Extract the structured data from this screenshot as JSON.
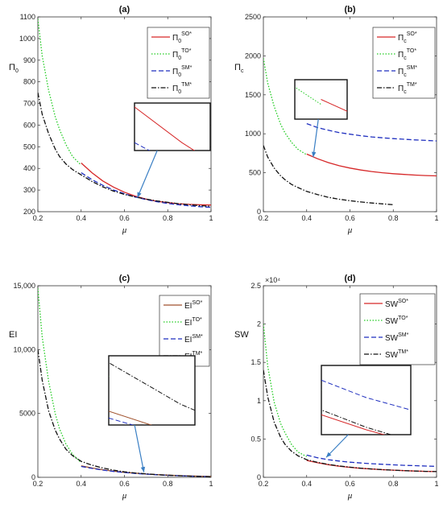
{
  "series_styles": [
    {
      "color": "#d62728",
      "dash": "",
      "width": 1.3
    },
    {
      "color": "#22cc22",
      "dash": "1.5,2",
      "width": 1.3
    },
    {
      "color": "#1f2fbf",
      "dash": "6,3",
      "width": 1.3
    },
    {
      "color": "#111111",
      "dash": "6,2,1.5,2",
      "width": 1.3
    }
  ],
  "series_styles_c": [
    {
      "color": "#a0522d",
      "dash": "",
      "width": 1.3
    },
    {
      "color": "#22cc22",
      "dash": "1.5,2",
      "width": 1.3
    },
    {
      "color": "#1f2fbf",
      "dash": "6,3",
      "width": 1.3
    },
    {
      "color": "#111111",
      "dash": "6,2,1.5,2",
      "width": 1.3
    }
  ],
  "chart_data": [
    {
      "id": "a",
      "type": "line",
      "title": "(a)",
      "xlabel": "μ",
      "ylabel": "Π0",
      "ylabel_base": "Π",
      "ylabel_sub": "0",
      "xlim": [
        0.2,
        1
      ],
      "ylim": [
        200,
        1100
      ],
      "xticks": [
        "0.2",
        "0.4",
        "0.6",
        "0.8",
        "1"
      ],
      "yticks": [
        "200",
        "300",
        "400",
        "500",
        "600",
        "700",
        "800",
        "900",
        "1000",
        "1100"
      ],
      "exponent_label": "",
      "legend_position": "top-right",
      "inset_region": {
        "x": [
          0.4,
          0.48
        ],
        "y": [
          370,
          430
        ]
      },
      "inset_arrow": {
        "from": [
          0.835,
          0.79
        ],
        "to": [
          0.79,
          0.85
        ],
        "target": [
          0.66,
          265
        ]
      },
      "series": [
        {
          "name": "Π0SO*",
          "legend_base": "Π",
          "legend_sub": "0",
          "legend_sup": "SO*",
          "x": [
            0.4,
            0.45,
            0.5,
            0.55,
            0.6,
            0.65,
            0.7,
            0.75,
            0.8,
            0.85,
            0.9,
            0.95,
            1.0
          ],
          "y": [
            425,
            380,
            342,
            313,
            290,
            272,
            258,
            248,
            242,
            237,
            234,
            232,
            231
          ]
        },
        {
          "name": "Π0TO*",
          "legend_base": "Π",
          "legend_sub": "0",
          "legend_sup": "TO*",
          "x": [
            0.2,
            0.22,
            0.25,
            0.28,
            0.3,
            0.33,
            0.36,
            0.4
          ],
          "y": [
            1090,
            920,
            760,
            640,
            580,
            510,
            455,
            415
          ]
        },
        {
          "name": "Π0SM*",
          "legend_base": "Π",
          "legend_sub": "0",
          "legend_sup": "SM*",
          "x": [
            0.4,
            0.45,
            0.5,
            0.55,
            0.6,
            0.65,
            0.7,
            0.75,
            0.8,
            0.85,
            0.9,
            0.95,
            1.0
          ],
          "y": [
            380,
            348,
            322,
            300,
            283,
            268,
            256,
            246,
            238,
            232,
            227,
            223,
            220
          ]
        },
        {
          "name": "Π0TM*",
          "legend_base": "Π",
          "legend_sub": "0",
          "legend_sup": "TM*",
          "x": [
            0.2,
            0.22,
            0.25,
            0.28,
            0.3,
            0.33,
            0.36,
            0.4,
            0.45,
            0.5,
            0.55,
            0.6,
            0.65,
            0.7,
            0.75,
            0.8,
            0.85,
            0.9,
            0.95,
            1.0
          ],
          "y": [
            750,
            650,
            560,
            490,
            455,
            420,
            395,
            370,
            340,
            315,
            295,
            280,
            268,
            258,
            250,
            243,
            237,
            232,
            228,
            225
          ]
        }
      ]
    },
    {
      "id": "b",
      "type": "line",
      "title": "(b)",
      "xlabel": "μ",
      "ylabel": "Πc",
      "ylabel_base": "Π",
      "ylabel_sub": "c",
      "xlim": [
        0.2,
        1
      ],
      "ylim": [
        0,
        2500
      ],
      "xticks": [
        "0.2",
        "0.4",
        "0.6",
        "0.8",
        "1"
      ],
      "yticks": [
        "0",
        "500",
        "1000",
        "1500",
        "2000",
        "2500"
      ],
      "exponent_label": "",
      "legend_position": "top-right",
      "inset_region": {
        "x": [
          0.38,
          0.42
        ],
        "y": [
          700,
          780
        ]
      },
      "inset_arrow": {
        "from": [
          0.44,
          0.66
        ],
        "to": [
          0.42,
          0.72
        ],
        "target": [
          0.43,
          700
        ]
      },
      "series": [
        {
          "name": "ΠcSO*",
          "legend_base": "Π",
          "legend_sub": "c",
          "legend_sup": "SO*",
          "x": [
            0.4,
            0.45,
            0.5,
            0.55,
            0.6,
            0.65,
            0.7,
            0.75,
            0.8,
            0.85,
            0.9,
            0.95,
            1.0
          ],
          "y": [
            740,
            680,
            630,
            590,
            560,
            535,
            515,
            500,
            488,
            478,
            470,
            464,
            460
          ]
        },
        {
          "name": "ΠcTO*",
          "legend_base": "Π",
          "legend_sub": "c",
          "legend_sup": "TO*",
          "x": [
            0.2,
            0.22,
            0.25,
            0.28,
            0.3,
            0.33,
            0.36,
            0.4
          ],
          "y": [
            1970,
            1650,
            1350,
            1120,
            1010,
            890,
            800,
            730
          ]
        },
        {
          "name": "ΠcSM*",
          "legend_base": "Π",
          "legend_sub": "c",
          "legend_sup": "SM*",
          "x": [
            0.4,
            0.45,
            0.5,
            0.55,
            0.6,
            0.65,
            0.7,
            0.75,
            0.8,
            0.85,
            0.9,
            0.95,
            1.0
          ],
          "y": [
            1130,
            1080,
            1045,
            1015,
            995,
            975,
            960,
            948,
            938,
            930,
            922,
            915,
            908
          ]
        },
        {
          "name": "ΠcTM*",
          "legend_base": "Π",
          "legend_sub": "c",
          "legend_sup": "TM*",
          "x": [
            0.2,
            0.22,
            0.25,
            0.28,
            0.3,
            0.33,
            0.36,
            0.4,
            0.45,
            0.5,
            0.55,
            0.6,
            0.65,
            0.7,
            0.75,
            0.8
          ],
          "y": [
            850,
            700,
            560,
            460,
            410,
            350,
            310,
            260,
            220,
            185,
            160,
            140,
            125,
            112,
            100,
            90
          ]
        }
      ]
    },
    {
      "id": "c",
      "type": "line",
      "title": "(c)",
      "xlabel": "μ",
      "ylabel": "EI",
      "ylabel_base": "EI",
      "ylabel_sub": "",
      "xlim": [
        0.2,
        1
      ],
      "ylim": [
        0,
        15000
      ],
      "xticks": [
        "0.2",
        "0.4",
        "0.6",
        "0.8",
        "1"
      ],
      "yticks": [
        "0",
        "5000",
        "10,000",
        "15,000"
      ],
      "exponent_label": "",
      "legend_position": "top-right",
      "inset_region": {
        "x": [
          0.4,
          0.46
        ],
        "y": [
          800,
          1300
        ]
      },
      "inset_arrow": {
        "from": [
          0.69,
          0.48
        ],
        "to": [
          0.69,
          0.1
        ],
        "target": [
          0.69,
          400
        ]
      },
      "series": [
        {
          "name": "EISO*",
          "legend_base": "EI",
          "legend_sub": "",
          "legend_sup": "SO*",
          "x": [
            0.4,
            0.45,
            0.5,
            0.55,
            0.6,
            0.65,
            0.7,
            0.75,
            0.8,
            0.85,
            0.9,
            0.95,
            1.0
          ],
          "y": [
            900,
            730,
            590,
            480,
            390,
            320,
            260,
            210,
            170,
            135,
            105,
            80,
            60
          ]
        },
        {
          "name": "EITO*",
          "legend_base": "EI",
          "legend_sub": "",
          "legend_sup": "TO*",
          "x": [
            0.2,
            0.22,
            0.25,
            0.28,
            0.3,
            0.33,
            0.36,
            0.4
          ],
          "y": [
            14800,
            11000,
            7500,
            5000,
            3800,
            2600,
            1800,
            1150
          ]
        },
        {
          "name": "EISM*",
          "legend_base": "EI",
          "legend_sub": "",
          "legend_sup": "SM*",
          "x": [
            0.4,
            0.45,
            0.5,
            0.55,
            0.6,
            0.65,
            0.7,
            0.75,
            0.8,
            0.85,
            0.9,
            0.95,
            1.0
          ],
          "y": [
            850,
            700,
            570,
            460,
            375,
            305,
            250,
            200,
            160,
            125,
            95,
            70,
            50
          ]
        },
        {
          "name": "EITM*",
          "legend_base": "EI",
          "legend_sub": "",
          "legend_sup": "TM*",
          "x": [
            0.2,
            0.22,
            0.25,
            0.28,
            0.3,
            0.33,
            0.36,
            0.4,
            0.45,
            0.5,
            0.55,
            0.6,
            0.65,
            0.7,
            0.75,
            0.8,
            0.85,
            0.9,
            0.95,
            1.0
          ],
          "y": [
            10000,
            7600,
            5200,
            3700,
            3000,
            2200,
            1700,
            1250,
            950,
            730,
            560,
            430,
            340,
            270,
            210,
            165,
            125,
            95,
            70,
            50
          ]
        }
      ]
    },
    {
      "id": "d",
      "type": "line",
      "title": "(d)",
      "xlabel": "μ",
      "ylabel": "SW",
      "ylabel_base": "SW",
      "ylabel_sub": "",
      "xlim": [
        0.2,
        1
      ],
      "ylim": [
        0,
        25000
      ],
      "xticks": [
        "0.2",
        "0.4",
        "0.6",
        "0.8",
        "1"
      ],
      "yticks": [
        "0",
        "0.5",
        "1",
        "1.5",
        "2",
        "2.5"
      ],
      "exponent_label": "×10⁴",
      "legend_position": "top-right",
      "inset_region": {
        "x": [
          0.4,
          0.5
        ],
        "y": [
          1800,
          3200
        ]
      },
      "inset_arrow": {
        "from": [
          0.62,
          0.36
        ],
        "to": [
          0.53,
          0.15
        ],
        "target": [
          0.49,
          2600
        ]
      },
      "series": [
        {
          "name": "SWSO*",
          "legend_base": "SW",
          "legend_sub": "",
          "legend_sup": "SO*",
          "x": [
            0.4,
            0.45,
            0.5,
            0.55,
            0.6,
            0.65,
            0.7,
            0.75,
            0.8,
            0.85,
            0.9,
            0.95,
            1.0
          ],
          "y": [
            2200,
            1900,
            1650,
            1450,
            1300,
            1180,
            1080,
            1000,
            930,
            870,
            820,
            780,
            750
          ]
        },
        {
          "name": "SWTO*",
          "legend_base": "SW",
          "legend_sub": "",
          "legend_sup": "TO*",
          "x": [
            0.2,
            0.22,
            0.25,
            0.28,
            0.3,
            0.33,
            0.36,
            0.4
          ],
          "y": [
            20000,
            14500,
            9800,
            7000,
            5800,
            4300,
            3300,
            2700
          ]
        },
        {
          "name": "SWSM*",
          "legend_base": "SW",
          "legend_sub": "",
          "legend_sup": "SM*",
          "x": [
            0.4,
            0.45,
            0.5,
            0.55,
            0.6,
            0.65,
            0.7,
            0.75,
            0.8,
            0.85,
            0.9,
            0.95,
            1.0
          ],
          "y": [
            2900,
            2550,
            2300,
            2120,
            1980,
            1870,
            1780,
            1700,
            1630,
            1570,
            1520,
            1470,
            1430
          ]
        },
        {
          "name": "SWTM*",
          "legend_base": "SW",
          "legend_sub": "",
          "legend_sup": "TM*",
          "x": [
            0.2,
            0.22,
            0.25,
            0.28,
            0.3,
            0.33,
            0.36,
            0.4,
            0.45,
            0.5,
            0.55,
            0.6,
            0.65,
            0.7,
            0.75,
            0.8,
            0.85,
            0.9,
            0.95,
            1.0
          ],
          "y": [
            14000,
            10500,
            7200,
            5200,
            4300,
            3400,
            2800,
            2300,
            1950,
            1680,
            1480,
            1320,
            1190,
            1090,
            1000,
            930,
            870,
            820,
            780,
            750
          ]
        }
      ]
    }
  ]
}
